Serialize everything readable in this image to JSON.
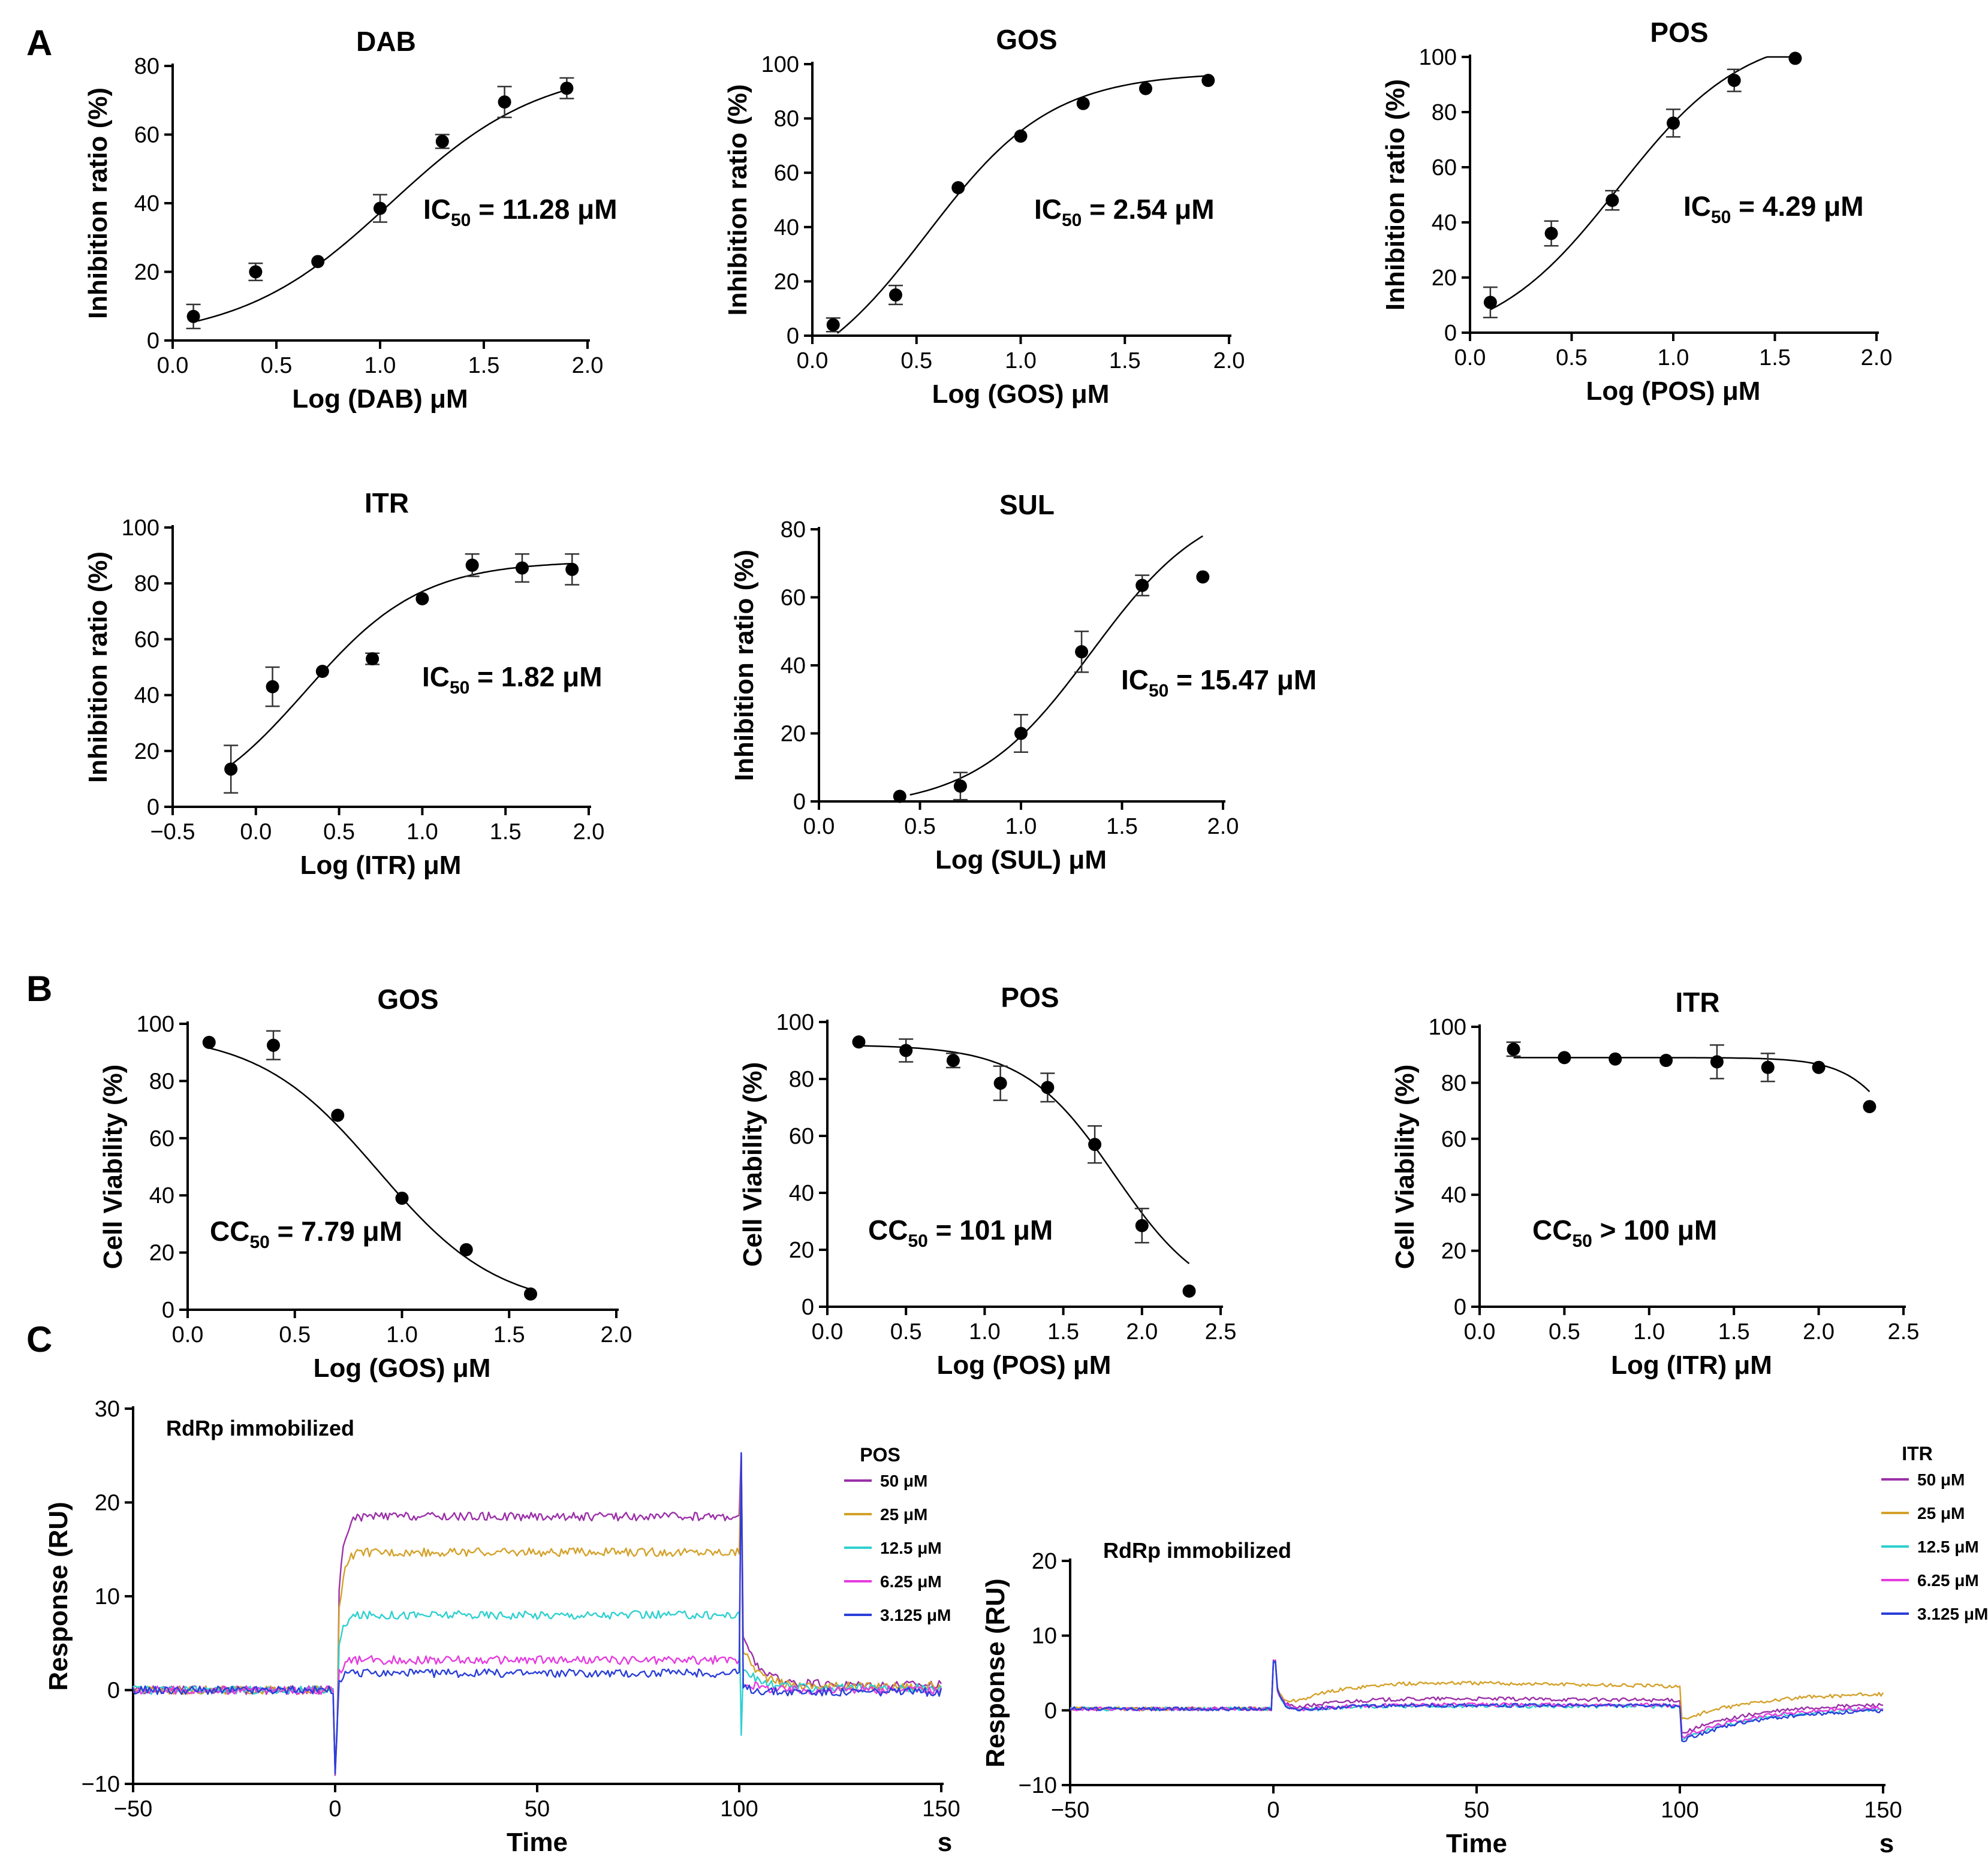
{
  "panels": [
    {
      "letter": "A"
    },
    {
      "letter": "B"
    },
    {
      "letter": "C"
    }
  ],
  "chart_data": [
    {
      "id": "A-DAB",
      "panel": "A",
      "type": "scatter",
      "fit": "sigmoid",
      "title": "DAB",
      "xlabel": "Log (DAB) μM",
      "ylabel": "Inhibition ratio (%)",
      "xlim": [
        0,
        2
      ],
      "ylim": [
        0,
        80
      ],
      "xticks": [
        0,
        0.5,
        1,
        1.5,
        2
      ],
      "xtick_labels": [
        "0.0",
        "0.5",
        "1.0",
        "1.5",
        "2.0"
      ],
      "yticks": [
        0,
        20,
        40,
        60,
        80
      ],
      "ytick_labels": [
        "0",
        "20",
        "40",
        "60",
        "80"
      ],
      "x": [
        0.1,
        0.4,
        0.7,
        1.0,
        1.3,
        1.6,
        1.9
      ],
      "y": [
        7,
        20,
        23,
        38.5,
        58,
        69.5,
        73.5
      ],
      "err": [
        3.5,
        2.5,
        1,
        4,
        2,
        4.5,
        3
      ],
      "fit_params": {
        "bottom": 0,
        "top": 80,
        "logec50": 1.05,
        "hill": 1.2,
        "xmin": 0.1,
        "xmax": 1.9
      },
      "annotation": {
        "pre": "IC",
        "sub": "50",
        "post": " = 11.28 μM"
      }
    },
    {
      "id": "A-GOS",
      "panel": "A",
      "type": "scatter",
      "fit": "sigmoid",
      "title": "GOS",
      "xlabel": "Log (GOS) μM",
      "ylabel": "Inhibition ratio (%)",
      "xlim": [
        0,
        2
      ],
      "ylim": [
        0,
        100
      ],
      "xticks": [
        0,
        0.5,
        1,
        1.5,
        2
      ],
      "xtick_labels": [
        "0.0",
        "0.5",
        "1.0",
        "1.5",
        "2.0"
      ],
      "yticks": [
        0,
        20,
        40,
        60,
        80,
        100
      ],
      "ytick_labels": [
        "0",
        "20",
        "40",
        "60",
        "80",
        "100"
      ],
      "x": [
        0.1,
        0.4,
        0.7,
        1.0,
        1.3,
        1.6,
        1.9
      ],
      "y": [
        4,
        15,
        54.5,
        73.5,
        85.5,
        91,
        94
      ],
      "err": [
        2.5,
        3.5,
        1,
        1,
        1,
        1,
        1
      ],
      "fit_params": {
        "bottom": -22,
        "top": 97,
        "logec50": 0.55,
        "hill": 1.45,
        "xmin": 0.12,
        "xmax": 1.9
      },
      "annotation": {
        "pre": "IC",
        "sub": "50",
        "post": " = 2.54 μM"
      }
    },
    {
      "id": "A-POS",
      "panel": "A",
      "type": "scatter",
      "fit": "sigmoid",
      "title": "POS",
      "xlabel": "Log (POS) μM",
      "ylabel": "Inhibition ratio (%)",
      "xlim": [
        0,
        2
      ],
      "ylim": [
        0,
        100
      ],
      "xticks": [
        0,
        0.5,
        1,
        1.5,
        2
      ],
      "xtick_labels": [
        "0.0",
        "0.5",
        "1.0",
        "1.5",
        "2.0"
      ],
      "yticks": [
        0,
        20,
        40,
        60,
        80,
        100
      ],
      "ytick_labels": [
        "0",
        "20",
        "40",
        "60",
        "80",
        "100"
      ],
      "x": [
        0.1,
        0.4,
        0.7,
        1.0,
        1.3,
        1.6
      ],
      "y": [
        11,
        36,
        48,
        76,
        91.5,
        99.5
      ],
      "err": [
        5.5,
        4.5,
        3.5,
        5,
        4,
        1
      ],
      "fit_params": {
        "bottom": -5,
        "top": 110,
        "logec50": 0.73,
        "hill": 1.4,
        "xmin": 0.1,
        "xmax": 1.6
      },
      "annotation": {
        "pre": "IC",
        "sub": "50",
        "post": " = 4.29 μM"
      }
    },
    {
      "id": "A-ITR",
      "panel": "A",
      "type": "scatter",
      "fit": "sigmoid",
      "title": "ITR",
      "xlabel": "Log (ITR) μM",
      "ylabel": "Inhibition ratio (%)",
      "xlim": [
        -0.5,
        2
      ],
      "ylim": [
        0,
        100
      ],
      "xticks": [
        -0.5,
        0,
        0.5,
        1,
        1.5,
        2
      ],
      "xtick_labels": [
        "−0.5",
        "0.0",
        "0.5",
        "1.0",
        "1.5",
        "2.0"
      ],
      "yticks": [
        0,
        20,
        40,
        60,
        80,
        100
      ],
      "ytick_labels": [
        "0",
        "20",
        "40",
        "60",
        "80",
        "100"
      ],
      "x": [
        -0.15,
        0.1,
        0.4,
        0.7,
        1.0,
        1.3,
        1.6,
        1.9
      ],
      "y": [
        13.5,
        43,
        48.5,
        53,
        74.5,
        86.5,
        85.5,
        85
      ],
      "err": [
        8.5,
        7,
        1,
        2,
        1,
        4,
        5,
        5.5
      ],
      "fit_params": {
        "bottom": -5,
        "top": 88,
        "logec50": 0.3,
        "hill": 1.25,
        "xmin": -0.15,
        "xmax": 1.9
      },
      "annotation": {
        "pre": "IC",
        "sub": "50",
        "post": " = 1.82 μM"
      }
    },
    {
      "id": "A-SUL",
      "panel": "A",
      "type": "scatter",
      "fit": "sigmoid",
      "title": "SUL",
      "xlabel": "Log (SUL) μM",
      "ylabel": "Inhibition ratio (%)",
      "xlim": [
        0,
        2
      ],
      "ylim": [
        0,
        80
      ],
      "xticks": [
        0,
        0.5,
        1,
        1.5,
        2
      ],
      "xtick_labels": [
        "0.0",
        "0.5",
        "1.0",
        "1.5",
        "2.0"
      ],
      "yticks": [
        0,
        20,
        40,
        60,
        80
      ],
      "ytick_labels": [
        "0",
        "20",
        "40",
        "60",
        "80"
      ],
      "x": [
        0.4,
        0.7,
        1.0,
        1.3,
        1.6,
        1.9
      ],
      "y": [
        1.5,
        4.5,
        20,
        44,
        63.5,
        66
      ],
      "err": [
        1,
        4,
        5.5,
        6,
        3,
        1
      ],
      "fit_params": {
        "bottom": -2,
        "top": 90,
        "logec50": 1.35,
        "hill": 1.5,
        "xmin": 0.45,
        "xmax": 1.9
      },
      "annotation": {
        "pre": "IC",
        "sub": "50",
        "post": " = 15.47 μM"
      }
    },
    {
      "id": "B-GOS",
      "panel": "B",
      "type": "scatter",
      "fit": "sigmoid",
      "title": "GOS",
      "xlabel": "Log (GOS) μM",
      "ylabel": "Cell Viability (%)",
      "xlim": [
        0,
        2
      ],
      "ylim": [
        0,
        100
      ],
      "xticks": [
        0,
        0.5,
        1,
        1.5,
        2
      ],
      "xtick_labels": [
        "0.0",
        "0.5",
        "1.0",
        "1.5",
        "2.0"
      ],
      "yticks": [
        0,
        20,
        40,
        60,
        80,
        100
      ],
      "ytick_labels": [
        "0",
        "20",
        "40",
        "60",
        "80",
        "100"
      ],
      "x": [
        0.1,
        0.4,
        0.7,
        1.0,
        1.3,
        1.6
      ],
      "y": [
        93.5,
        92.5,
        68,
        39,
        21,
        5.5
      ],
      "err": [
        1,
        5,
        1,
        1,
        1,
        1
      ],
      "fit_params": {
        "bottom": 0,
        "top": 97,
        "logec50": 0.89,
        "hill": -1.55,
        "xmin": 0.1,
        "xmax": 1.6
      },
      "annotation": {
        "pre": "CC",
        "sub": "50",
        "post": " = 7.79 μM"
      }
    },
    {
      "id": "B-POS",
      "panel": "B",
      "type": "scatter",
      "fit": "sigmoid",
      "title": "POS",
      "xlabel": "Log (POS) μM",
      "ylabel": "Cell Viability (%)",
      "xlim": [
        0,
        2.5
      ],
      "ylim": [
        0,
        100
      ],
      "xticks": [
        0,
        0.5,
        1,
        1.5,
        2,
        2.5
      ],
      "xtick_labels": [
        "0.0",
        "0.5",
        "1.0",
        "1.5",
        "2.0",
        "2.5"
      ],
      "yticks": [
        0,
        20,
        40,
        60,
        80,
        100
      ],
      "ytick_labels": [
        "0",
        "20",
        "40",
        "60",
        "80",
        "100"
      ],
      "x": [
        0.2,
        0.5,
        0.8,
        1.1,
        1.4,
        1.7,
        2.0,
        2.3
      ],
      "y": [
        93,
        90,
        86.5,
        78.5,
        77,
        57,
        28.5,
        5.5
      ],
      "err": [
        1,
        4,
        2.5,
        6,
        5,
        6.5,
        6,
        1
      ],
      "fit_params": {
        "bottom": 0,
        "top": 92,
        "logec50": 1.83,
        "hill": -1.5,
        "xmin": 0.2,
        "xmax": 2.3
      },
      "annotation": {
        "pre": "CC",
        "sub": "50",
        "post": " = 101 μM"
      }
    },
    {
      "id": "B-ITR",
      "panel": "B",
      "type": "scatter",
      "fit": "sigmoid",
      "title": "ITR",
      "xlabel": "Log (ITR) μM",
      "ylabel": "Cell Viability (%)",
      "xlim": [
        0,
        2.5
      ],
      "ylim": [
        0,
        100
      ],
      "xticks": [
        0,
        0.5,
        1,
        1.5,
        2,
        2.5
      ],
      "xtick_labels": [
        "0.0",
        "0.5",
        "1.0",
        "1.5",
        "2.0",
        "2.5"
      ],
      "yticks": [
        0,
        20,
        40,
        60,
        80,
        100
      ],
      "ytick_labels": [
        "0",
        "20",
        "40",
        "60",
        "80",
        "100"
      ],
      "x": [
        0.2,
        0.5,
        0.8,
        1.1,
        1.4,
        1.7,
        2.0,
        2.3
      ],
      "y": [
        92,
        89,
        88.5,
        88,
        87.5,
        85.5,
        85.5,
        71.5
      ],
      "err": [
        2.5,
        1,
        1,
        1,
        6,
        5,
        1,
        1
      ],
      "fit_params": {
        "bottom": 0,
        "top": 89,
        "logec50": 2.62,
        "hill": -2.5,
        "xmin": 0.2,
        "xmax": 2.3
      },
      "annotation": {
        "pre": "CC",
        "sub": "50",
        "post": " > 100 μM"
      }
    },
    {
      "id": "C-POS",
      "panel": "C",
      "type": "line",
      "title": "RdRp immobilized",
      "xlabel": "Time",
      "x_unit": "s",
      "ylabel": "Response (RU)",
      "xlim": [
        -50,
        150
      ],
      "ylim": [
        -10,
        30
      ],
      "xticks": [
        -50,
        0,
        50,
        100,
        150
      ],
      "xtick_labels": [
        "−50",
        "0",
        "50",
        "100",
        "150"
      ],
      "yticks": [
        -10,
        0,
        10,
        20,
        30
      ],
      "ytick_labels": [
        "−10",
        "0",
        "10",
        "20",
        "30"
      ],
      "legend_title": "POS",
      "series": [
        {
          "name": "50 μM",
          "color": "#9b30a8",
          "plateau": 18.5,
          "rise": 0.5,
          "post": 0.6
        },
        {
          "name": "25 μM",
          "color": "#d4a12a",
          "plateau": 14.7,
          "rise": 0.5,
          "post": 0.4
        },
        {
          "name": "12.5 μM",
          "color": "#2fd0d0",
          "plateau": 8.0,
          "rise": 0.5,
          "post": 0.2
        },
        {
          "name": "6.25 μM",
          "color": "#e63be0",
          "plateau": 3.2,
          "rise": 0.6,
          "post": 0.0
        },
        {
          "name": "3.125 μM",
          "color": "#2a3fd9",
          "plateau": 1.8,
          "rise": 0.8,
          "post": -0.2
        }
      ]
    },
    {
      "id": "C-ITR",
      "panel": "C",
      "type": "line",
      "title": "RdRp immobilized",
      "xlabel": "Time",
      "x_unit": "s",
      "ylabel": "Response (RU)",
      "xlim": [
        -50,
        150
      ],
      "ylim": [
        -10,
        20
      ],
      "xticks": [
        -50,
        0,
        50,
        100,
        150
      ],
      "xtick_labels": [
        "−50",
        "0",
        "50",
        "100",
        "150"
      ],
      "yticks": [
        -10,
        0,
        10,
        20
      ],
      "ytick_labels": [
        "−10",
        "0",
        "10",
        "20"
      ],
      "legend_title": "ITR",
      "series": [
        {
          "name": "50 μM",
          "color": "#9b30a8",
          "plateau": 1.6,
          "post": 1.0
        },
        {
          "name": "25 μM",
          "color": "#d4a12a",
          "plateau": 3.8,
          "post": 2.4
        },
        {
          "name": "12.5 μM",
          "color": "#2fd0d0",
          "plateau": 0.6,
          "post": 0.4
        },
        {
          "name": "6.25 μM",
          "color": "#e63be0",
          "plateau": 0.8,
          "post": 0.6
        },
        {
          "name": "3.125 μM",
          "color": "#2a3fd9",
          "plateau": 0.7,
          "post": 0.2
        }
      ]
    }
  ]
}
